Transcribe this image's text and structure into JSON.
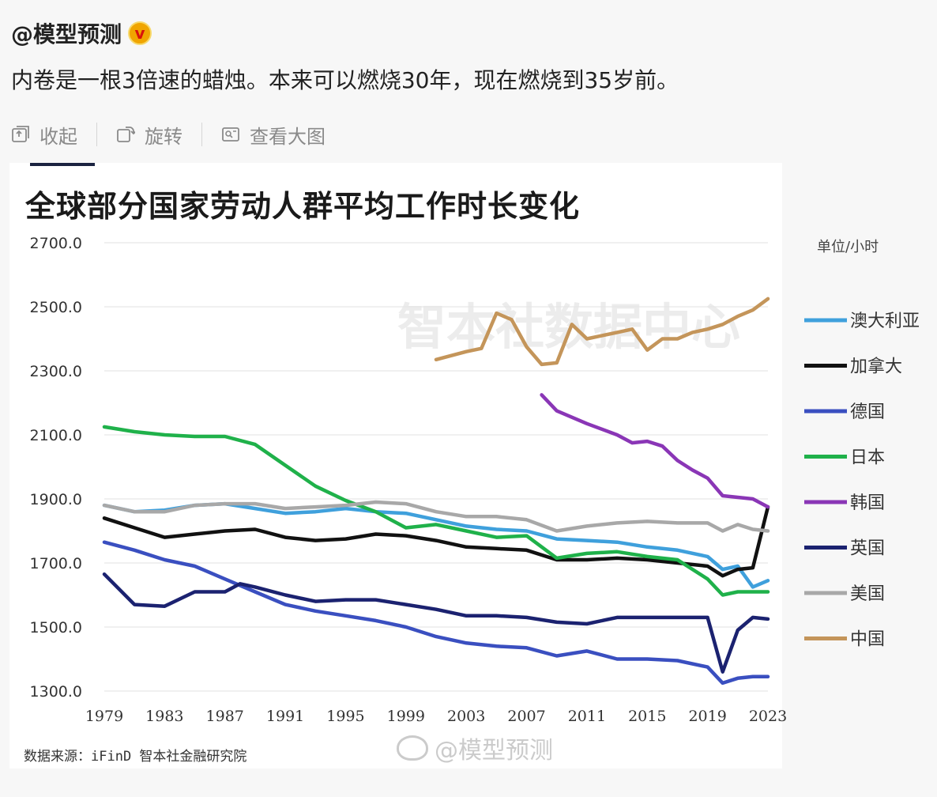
{
  "post": {
    "username": "@模型预测",
    "text": "内卷是一根3倍速的蜡烛。本来可以燃烧30年，现在燃烧到35岁前。"
  },
  "toolbar": {
    "collapse_label": "收起",
    "rotate_label": "旋转",
    "view_large_label": "查看大图"
  },
  "icons": [
    "collapse-icon",
    "rotate-icon",
    "view-large-icon",
    "verified-badge-icon"
  ],
  "colors": {
    "australia": "#3fa0dc",
    "canada": "#111111",
    "germany": "#3a4fc0",
    "japan": "#1fb14a",
    "korea": "#8a36b6",
    "uk": "#1b2270",
    "usa": "#a8a8a8",
    "china": "#c4955a"
  },
  "watermarks": {
    "center": "智本社数据中心",
    "weibo": "@模型预测"
  },
  "source_note": "数据来源：iFinD 智本社金融研究院",
  "unit_label": "单位/小时",
  "chart_data": {
    "type": "line",
    "title": "全球部分国家劳动人群平均工作时长变化",
    "ylim": [
      1300,
      2700
    ],
    "yticks": [
      "2700.0",
      "2500.0",
      "2300.0",
      "2100.0",
      "1900.0",
      "1700.0",
      "1500.0",
      "1300.0"
    ],
    "ytick_values": [
      2700,
      2500,
      2300,
      2100,
      1900,
      1700,
      1500,
      1300
    ],
    "xlim": [
      1979,
      2023
    ],
    "xticks": [
      "1979",
      "1983",
      "1987",
      "1991",
      "1995",
      "1999",
      "2003",
      "2007",
      "2011",
      "2015",
      "2019",
      "2023"
    ],
    "xtick_values": [
      1979,
      1983,
      1987,
      1991,
      1995,
      1999,
      2003,
      2007,
      2011,
      2015,
      2019,
      2023
    ],
    "grid": true,
    "legend_position": "right",
    "series": [
      {
        "name": "澳大利亚",
        "color_key": "australia",
        "points": [
          [
            1979,
            1880
          ],
          [
            1981,
            1860
          ],
          [
            1983,
            1865
          ],
          [
            1985,
            1880
          ],
          [
            1987,
            1885
          ],
          [
            1989,
            1870
          ],
          [
            1991,
            1855
          ],
          [
            1993,
            1860
          ],
          [
            1995,
            1870
          ],
          [
            1997,
            1860
          ],
          [
            1999,
            1855
          ],
          [
            2001,
            1835
          ],
          [
            2003,
            1815
          ],
          [
            2005,
            1805
          ],
          [
            2007,
            1800
          ],
          [
            2009,
            1775
          ],
          [
            2011,
            1770
          ],
          [
            2013,
            1765
          ],
          [
            2015,
            1750
          ],
          [
            2017,
            1740
          ],
          [
            2019,
            1720
          ],
          [
            2020,
            1680
          ],
          [
            2021,
            1690
          ],
          [
            2022,
            1625
          ],
          [
            2023,
            1645
          ]
        ]
      },
      {
        "name": "加拿大",
        "color_key": "canada",
        "points": [
          [
            1979,
            1840
          ],
          [
            1981,
            1810
          ],
          [
            1983,
            1780
          ],
          [
            1985,
            1790
          ],
          [
            1987,
            1800
          ],
          [
            1989,
            1805
          ],
          [
            1991,
            1780
          ],
          [
            1993,
            1770
          ],
          [
            1995,
            1775
          ],
          [
            1997,
            1790
          ],
          [
            1999,
            1785
          ],
          [
            2001,
            1770
          ],
          [
            2003,
            1750
          ],
          [
            2005,
            1745
          ],
          [
            2007,
            1740
          ],
          [
            2009,
            1710
          ],
          [
            2011,
            1710
          ],
          [
            2013,
            1715
          ],
          [
            2015,
            1710
          ],
          [
            2017,
            1700
          ],
          [
            2019,
            1690
          ],
          [
            2020,
            1660
          ],
          [
            2021,
            1680
          ],
          [
            2022,
            1685
          ],
          [
            2023,
            1875
          ]
        ]
      },
      {
        "name": "德国",
        "color_key": "germany",
        "points": [
          [
            1979,
            1765
          ],
          [
            1981,
            1740
          ],
          [
            1983,
            1710
          ],
          [
            1985,
            1690
          ],
          [
            1987,
            1650
          ],
          [
            1989,
            1610
          ],
          [
            1991,
            1570
          ],
          [
            1993,
            1550
          ],
          [
            1995,
            1535
          ],
          [
            1997,
            1520
          ],
          [
            1999,
            1500
          ],
          [
            2001,
            1470
          ],
          [
            2003,
            1450
          ],
          [
            2005,
            1440
          ],
          [
            2007,
            1435
          ],
          [
            2009,
            1410
          ],
          [
            2011,
            1425
          ],
          [
            2013,
            1400
          ],
          [
            2015,
            1400
          ],
          [
            2017,
            1395
          ],
          [
            2019,
            1375
          ],
          [
            2020,
            1325
          ],
          [
            2021,
            1340
          ],
          [
            2022,
            1345
          ],
          [
            2023,
            1345
          ]
        ]
      },
      {
        "name": "日本",
        "color_key": "japan",
        "points": [
          [
            1979,
            2125
          ],
          [
            1981,
            2110
          ],
          [
            1983,
            2100
          ],
          [
            1985,
            2095
          ],
          [
            1987,
            2095
          ],
          [
            1989,
            2070
          ],
          [
            1991,
            2005
          ],
          [
            1993,
            1940
          ],
          [
            1995,
            1895
          ],
          [
            1997,
            1860
          ],
          [
            1999,
            1810
          ],
          [
            2001,
            1820
          ],
          [
            2003,
            1800
          ],
          [
            2005,
            1780
          ],
          [
            2007,
            1785
          ],
          [
            2009,
            1715
          ],
          [
            2011,
            1730
          ],
          [
            2013,
            1735
          ],
          [
            2015,
            1720
          ],
          [
            2017,
            1710
          ],
          [
            2019,
            1650
          ],
          [
            2020,
            1600
          ],
          [
            2021,
            1610
          ],
          [
            2022,
            1610
          ],
          [
            2023,
            1610
          ]
        ]
      },
      {
        "name": "韩国",
        "color_key": "korea",
        "points": [
          [
            2008,
            2225
          ],
          [
            2009,
            2175
          ],
          [
            2011,
            2135
          ],
          [
            2013,
            2100
          ],
          [
            2014,
            2075
          ],
          [
            2015,
            2080
          ],
          [
            2016,
            2065
          ],
          [
            2017,
            2020
          ],
          [
            2018,
            1990
          ],
          [
            2019,
            1965
          ],
          [
            2020,
            1910
          ],
          [
            2021,
            1905
          ],
          [
            2022,
            1900
          ],
          [
            2023,
            1875
          ]
        ]
      },
      {
        "name": "英国",
        "color_key": "uk",
        "points": [
          [
            1979,
            1665
          ],
          [
            1981,
            1570
          ],
          [
            1983,
            1565
          ],
          [
            1985,
            1610
          ],
          [
            1987,
            1610
          ],
          [
            1988,
            1635
          ],
          [
            1989,
            1625
          ],
          [
            1991,
            1600
          ],
          [
            1993,
            1580
          ],
          [
            1995,
            1585
          ],
          [
            1997,
            1585
          ],
          [
            1999,
            1570
          ],
          [
            2001,
            1555
          ],
          [
            2003,
            1535
          ],
          [
            2005,
            1535
          ],
          [
            2007,
            1530
          ],
          [
            2009,
            1515
          ],
          [
            2011,
            1510
          ],
          [
            2013,
            1530
          ],
          [
            2015,
            1530
          ],
          [
            2017,
            1530
          ],
          [
            2019,
            1530
          ],
          [
            2020,
            1360
          ],
          [
            2021,
            1490
          ],
          [
            2022,
            1530
          ],
          [
            2023,
            1525
          ]
        ]
      },
      {
        "name": "美国",
        "color_key": "usa",
        "points": [
          [
            1979,
            1880
          ],
          [
            1981,
            1860
          ],
          [
            1983,
            1860
          ],
          [
            1985,
            1880
          ],
          [
            1987,
            1885
          ],
          [
            1989,
            1885
          ],
          [
            1991,
            1870
          ],
          [
            1993,
            1875
          ],
          [
            1995,
            1880
          ],
          [
            1997,
            1890
          ],
          [
            1999,
            1885
          ],
          [
            2001,
            1860
          ],
          [
            2003,
            1845
          ],
          [
            2005,
            1845
          ],
          [
            2007,
            1835
          ],
          [
            2009,
            1800
          ],
          [
            2011,
            1815
          ],
          [
            2013,
            1825
          ],
          [
            2015,
            1830
          ],
          [
            2017,
            1825
          ],
          [
            2019,
            1825
          ],
          [
            2020,
            1800
          ],
          [
            2021,
            1820
          ],
          [
            2022,
            1805
          ],
          [
            2023,
            1800
          ]
        ]
      },
      {
        "name": "中国",
        "color_key": "china",
        "points": [
          [
            2001,
            2335
          ],
          [
            2003,
            2360
          ],
          [
            2004,
            2370
          ],
          [
            2005,
            2480
          ],
          [
            2006,
            2460
          ],
          [
            2007,
            2375
          ],
          [
            2008,
            2320
          ],
          [
            2009,
            2325
          ],
          [
            2010,
            2445
          ],
          [
            2011,
            2400
          ],
          [
            2013,
            2420
          ],
          [
            2014,
            2430
          ],
          [
            2015,
            2365
          ],
          [
            2016,
            2400
          ],
          [
            2017,
            2400
          ],
          [
            2018,
            2420
          ],
          [
            2019,
            2430
          ],
          [
            2020,
            2445
          ],
          [
            2021,
            2470
          ],
          [
            2022,
            2490
          ],
          [
            2023,
            2525
          ]
        ]
      }
    ]
  }
}
